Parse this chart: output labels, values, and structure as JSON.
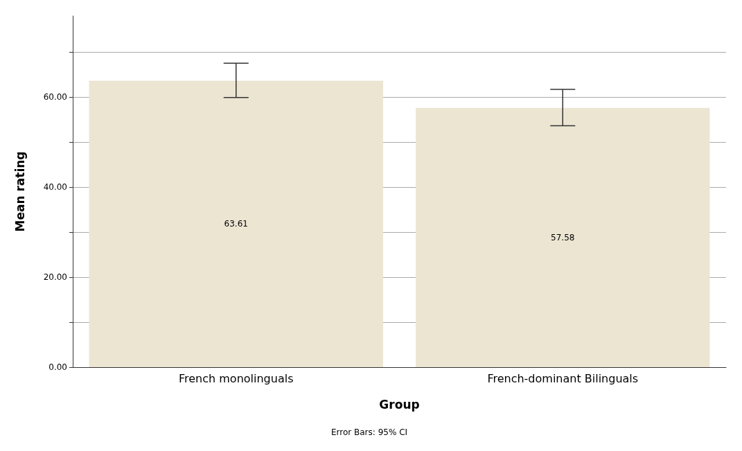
{
  "chart_data": {
    "type": "bar",
    "xlabel": "Group",
    "ylabel": "Mean rating",
    "categories": [
      "French monolinguals",
      "French-dominant Bilinguals"
    ],
    "values": [
      63.61,
      57.58
    ],
    "errors": [
      [
        59.9,
        67.5
      ],
      [
        53.6,
        61.7
      ]
    ],
    "color": "#ebe5d2",
    "data_labels": true,
    "ylim": [
      0,
      78
    ],
    "yticks": [
      {
        "value": 0,
        "label": "0.00"
      },
      {
        "value": 10,
        "label": null
      },
      {
        "value": 20,
        "label": "20.00"
      },
      {
        "value": 30,
        "label": null
      },
      {
        "value": 40,
        "label": "40.00"
      },
      {
        "value": 50,
        "label": null
      },
      {
        "value": 60,
        "label": "60.00"
      },
      {
        "value": 70,
        "label": null
      }
    ],
    "grid": "y",
    "annotations": [
      "Error Bars: 95% CI"
    ]
  }
}
